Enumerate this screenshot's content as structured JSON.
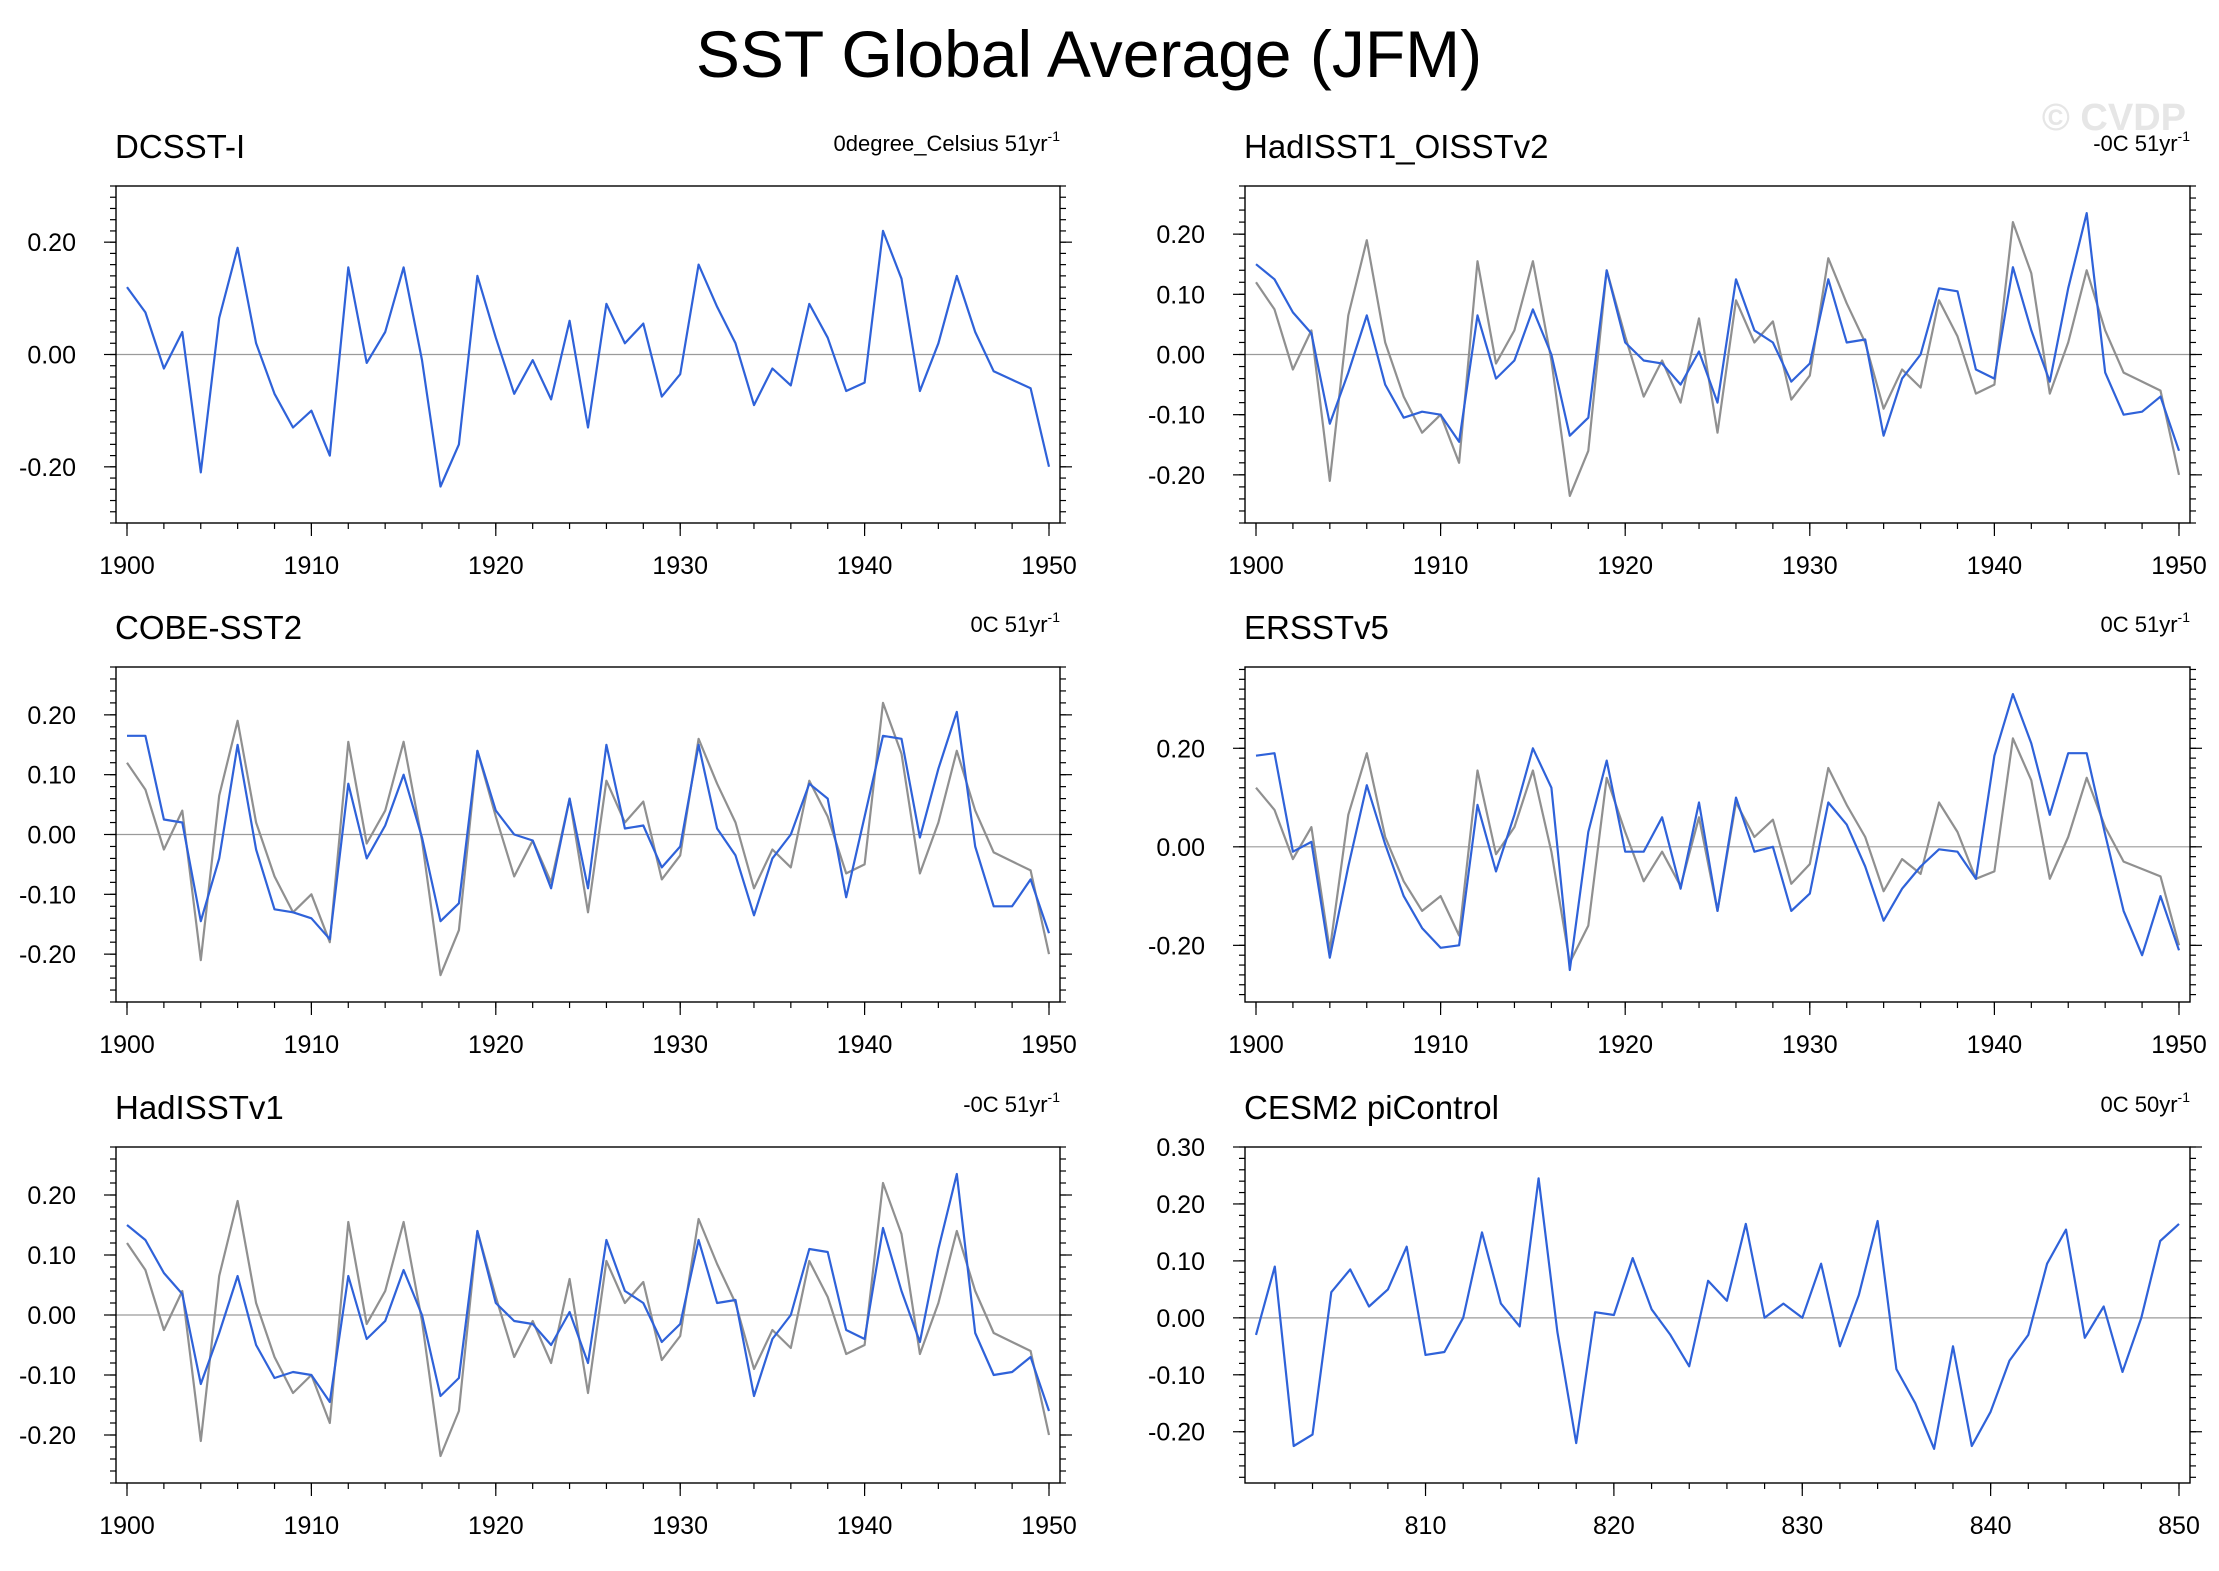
{
  "title": "SST Global Average (JFM)",
  "watermark": "© CVDP",
  "colors": {
    "observed": "#2f62d9",
    "reference": "#909090",
    "zero_line": "#9a9a9a"
  },
  "chart_data": [
    {
      "type": "line",
      "title": "DCSST-I",
      "units": {
        "text": "0degree_Celsius 51yr",
        "sup": "-1"
      },
      "xlim": [
        1900,
        1950
      ],
      "ylim": [
        -0.3,
        0.3
      ],
      "x_ticks": [
        1900,
        1910,
        1920,
        1930,
        1940,
        1950
      ],
      "y_ticks": [
        -0.2,
        0.0,
        0.2
      ],
      "y_tick_labels": [
        "-0.20",
        "0.00",
        "0.20"
      ],
      "x_start": 1900,
      "series": [
        {
          "name": "DCSST-I",
          "role": "main",
          "values": [
            0.12,
            0.075,
            -0.025,
            0.04,
            -0.21,
            0.065,
            0.19,
            0.02,
            -0.07,
            -0.13,
            -0.1,
            -0.18,
            0.155,
            -0.015,
            0.04,
            0.155,
            -0.01,
            -0.235,
            -0.16,
            0.14,
            0.03,
            -0.07,
            -0.01,
            -0.08,
            0.06,
            -0.13,
            0.09,
            0.02,
            0.055,
            -0.075,
            -0.035,
            0.16,
            0.085,
            0.02,
            -0.09,
            -0.025,
            -0.055,
            0.09,
            0.03,
            -0.065,
            -0.05,
            0.22,
            0.135,
            -0.065,
            0.02,
            0.14,
            0.04,
            -0.03,
            -0.045,
            -0.06,
            -0.2
          ]
        }
      ]
    },
    {
      "type": "line",
      "title": "HadISST1_OISSTv2",
      "units": {
        "text": "-0C 51yr",
        "sup": "-1"
      },
      "xlim": [
        1900,
        1950
      ],
      "ylim": [
        -0.28,
        0.28
      ],
      "x_ticks": [
        1900,
        1910,
        1920,
        1930,
        1940,
        1950
      ],
      "y_ticks": [
        -0.2,
        -0.1,
        0.0,
        0.1,
        0.2
      ],
      "y_tick_labels": [
        "-0.20",
        "-0.10",
        "0.00",
        "0.10",
        "0.20"
      ],
      "x_start": 1900,
      "series": [
        {
          "name": "DCSST-I",
          "role": "reference",
          "values": [
            0.12,
            0.075,
            -0.025,
            0.04,
            -0.21,
            0.065,
            0.19,
            0.02,
            -0.07,
            -0.13,
            -0.1,
            -0.18,
            0.155,
            -0.015,
            0.04,
            0.155,
            -0.01,
            -0.235,
            -0.16,
            0.14,
            0.03,
            -0.07,
            -0.01,
            -0.08,
            0.06,
            -0.13,
            0.09,
            0.02,
            0.055,
            -0.075,
            -0.035,
            0.16,
            0.085,
            0.02,
            -0.09,
            -0.025,
            -0.055,
            0.09,
            0.03,
            -0.065,
            -0.05,
            0.22,
            0.135,
            -0.065,
            0.02,
            0.14,
            0.04,
            -0.03,
            -0.045,
            -0.06,
            -0.2
          ]
        },
        {
          "name": "HadISST1_OISSTv2",
          "role": "main",
          "values": [
            0.15,
            0.125,
            0.07,
            0.035,
            -0.115,
            -0.03,
            0.065,
            -0.05,
            -0.105,
            -0.095,
            -0.1,
            -0.145,
            0.065,
            -0.04,
            -0.01,
            0.075,
            0.0,
            -0.135,
            -0.105,
            0.14,
            0.02,
            -0.01,
            -0.015,
            -0.05,
            0.005,
            -0.08,
            0.125,
            0.04,
            0.02,
            -0.045,
            -0.015,
            0.125,
            0.02,
            0.025,
            -0.135,
            -0.04,
            0.0,
            0.11,
            0.105,
            -0.025,
            -0.04,
            0.145,
            0.04,
            -0.045,
            0.11,
            0.235,
            -0.03,
            -0.1,
            -0.095,
            -0.07,
            -0.16
          ]
        }
      ]
    },
    {
      "type": "line",
      "title": "COBE-SST2",
      "units": {
        "text": "0C 51yr",
        "sup": "-1"
      },
      "xlim": [
        1900,
        1950
      ],
      "ylim": [
        -0.28,
        0.28
      ],
      "x_ticks": [
        1900,
        1910,
        1920,
        1930,
        1940,
        1950
      ],
      "y_ticks": [
        -0.2,
        -0.1,
        0.0,
        0.1,
        0.2
      ],
      "y_tick_labels": [
        "-0.20",
        "-0.10",
        "0.00",
        "0.10",
        "0.20"
      ],
      "x_start": 1900,
      "series": [
        {
          "name": "DCSST-I",
          "role": "reference",
          "values": [
            0.12,
            0.075,
            -0.025,
            0.04,
            -0.21,
            0.065,
            0.19,
            0.02,
            -0.07,
            -0.13,
            -0.1,
            -0.18,
            0.155,
            -0.015,
            0.04,
            0.155,
            -0.01,
            -0.235,
            -0.16,
            0.14,
            0.03,
            -0.07,
            -0.01,
            -0.08,
            0.06,
            -0.13,
            0.09,
            0.02,
            0.055,
            -0.075,
            -0.035,
            0.16,
            0.085,
            0.02,
            -0.09,
            -0.025,
            -0.055,
            0.09,
            0.03,
            -0.065,
            -0.05,
            0.22,
            0.135,
            -0.065,
            0.02,
            0.14,
            0.04,
            -0.03,
            -0.045,
            -0.06,
            -0.2
          ]
        },
        {
          "name": "COBE-SST2",
          "role": "main",
          "values": [
            0.165,
            0.165,
            0.025,
            0.02,
            -0.145,
            -0.04,
            0.15,
            -0.025,
            -0.125,
            -0.13,
            -0.14,
            -0.175,
            0.085,
            -0.04,
            0.015,
            0.1,
            -0.005,
            -0.145,
            -0.115,
            0.14,
            0.04,
            0.0,
            -0.01,
            -0.09,
            0.06,
            -0.09,
            0.15,
            0.01,
            0.015,
            -0.055,
            -0.02,
            0.15,
            0.01,
            -0.035,
            -0.135,
            -0.04,
            0.0,
            0.085,
            0.06,
            -0.105,
            0.03,
            0.165,
            0.16,
            -0.005,
            0.11,
            0.205,
            -0.02,
            -0.12,
            -0.12,
            -0.075,
            -0.165
          ]
        }
      ]
    },
    {
      "type": "line",
      "title": "ERSSTv5",
      "units": {
        "text": "0C 51yr",
        "sup": "-1"
      },
      "xlim": [
        1900,
        1950
      ],
      "ylim": [
        -0.315,
        0.365
      ],
      "x_ticks": [
        1900,
        1910,
        1920,
        1930,
        1940,
        1950
      ],
      "y_ticks": [
        -0.2,
        0.0,
        0.2
      ],
      "y_tick_labels": [
        "-0.20",
        "0.00",
        "0.20"
      ],
      "x_start": 1900,
      "series": [
        {
          "name": "DCSST-I",
          "role": "reference",
          "values": [
            0.12,
            0.075,
            -0.025,
            0.04,
            -0.21,
            0.065,
            0.19,
            0.02,
            -0.07,
            -0.13,
            -0.1,
            -0.18,
            0.155,
            -0.015,
            0.04,
            0.155,
            -0.01,
            -0.235,
            -0.16,
            0.14,
            0.03,
            -0.07,
            -0.01,
            -0.08,
            0.06,
            -0.13,
            0.09,
            0.02,
            0.055,
            -0.075,
            -0.035,
            0.16,
            0.085,
            0.02,
            -0.09,
            -0.025,
            -0.055,
            0.09,
            0.03,
            -0.065,
            -0.05,
            0.22,
            0.135,
            -0.065,
            0.02,
            0.14,
            0.04,
            -0.03,
            -0.045,
            -0.06,
            -0.2
          ]
        },
        {
          "name": "ERSSTv5",
          "role": "main",
          "values": [
            0.185,
            0.19,
            -0.01,
            0.01,
            -0.225,
            -0.04,
            0.125,
            0.005,
            -0.1,
            -0.165,
            -0.205,
            -0.2,
            0.085,
            -0.05,
            0.065,
            0.2,
            0.12,
            -0.25,
            0.03,
            0.175,
            -0.01,
            -0.01,
            0.06,
            -0.085,
            0.09,
            -0.13,
            0.1,
            -0.01,
            0.0,
            -0.13,
            -0.095,
            0.09,
            0.045,
            -0.04,
            -0.15,
            -0.085,
            -0.04,
            -0.005,
            -0.01,
            -0.065,
            0.185,
            0.31,
            0.21,
            0.065,
            0.19,
            0.19,
            0.025,
            -0.13,
            -0.22,
            -0.1,
            -0.21
          ]
        }
      ]
    },
    {
      "type": "line",
      "title": "HadISSTv1",
      "units": {
        "text": "-0C 51yr",
        "sup": "-1"
      },
      "xlim": [
        1900,
        1950
      ],
      "ylim": [
        -0.28,
        0.28
      ],
      "x_ticks": [
        1900,
        1910,
        1920,
        1930,
        1940,
        1950
      ],
      "y_ticks": [
        -0.2,
        -0.1,
        0.0,
        0.1,
        0.2
      ],
      "y_tick_labels": [
        "-0.20",
        "-0.10",
        "0.00",
        "0.10",
        "0.20"
      ],
      "x_start": 1900,
      "series": [
        {
          "name": "DCSST-I",
          "role": "reference",
          "values": [
            0.12,
            0.075,
            -0.025,
            0.04,
            -0.21,
            0.065,
            0.19,
            0.02,
            -0.07,
            -0.13,
            -0.1,
            -0.18,
            0.155,
            -0.015,
            0.04,
            0.155,
            -0.01,
            -0.235,
            -0.16,
            0.14,
            0.03,
            -0.07,
            -0.01,
            -0.08,
            0.06,
            -0.13,
            0.09,
            0.02,
            0.055,
            -0.075,
            -0.035,
            0.16,
            0.085,
            0.02,
            -0.09,
            -0.025,
            -0.055,
            0.09,
            0.03,
            -0.065,
            -0.05,
            0.22,
            0.135,
            -0.065,
            0.02,
            0.14,
            0.04,
            -0.03,
            -0.045,
            -0.06,
            -0.2
          ]
        },
        {
          "name": "HadISSTv1",
          "role": "main",
          "values": [
            0.15,
            0.125,
            0.07,
            0.035,
            -0.115,
            -0.03,
            0.065,
            -0.05,
            -0.105,
            -0.095,
            -0.1,
            -0.145,
            0.065,
            -0.04,
            -0.01,
            0.075,
            0.0,
            -0.135,
            -0.105,
            0.14,
            0.02,
            -0.01,
            -0.015,
            -0.05,
            0.005,
            -0.08,
            0.125,
            0.04,
            0.02,
            -0.045,
            -0.015,
            0.125,
            0.02,
            0.025,
            -0.135,
            -0.04,
            0.0,
            0.11,
            0.105,
            -0.025,
            -0.04,
            0.145,
            0.04,
            -0.045,
            0.11,
            0.235,
            -0.03,
            -0.1,
            -0.095,
            -0.07,
            -0.16
          ]
        }
      ]
    },
    {
      "type": "line",
      "title": "CESM2 piControl",
      "units": {
        "text": "0C 50yr",
        "sup": "-1"
      },
      "xlim": [
        801,
        850
      ],
      "ylim": [
        -0.29,
        0.3
      ],
      "x_ticks": [
        810,
        820,
        830,
        840,
        850
      ],
      "y_ticks": [
        -0.2,
        -0.1,
        0.0,
        0.1,
        0.2,
        0.3
      ],
      "y_tick_labels": [
        "-0.20",
        "-0.10",
        "0.00",
        "0.10",
        "0.20",
        "0.30"
      ],
      "x_start": 801,
      "series": [
        {
          "name": "CESM2 piControl",
          "role": "main",
          "values": [
            -0.03,
            0.09,
            -0.225,
            -0.205,
            0.045,
            0.085,
            0.02,
            0.05,
            0.125,
            -0.065,
            -0.06,
            0.0,
            0.15,
            0.025,
            -0.015,
            0.245,
            -0.025,
            -0.22,
            0.01,
            0.005,
            0.105,
            0.015,
            -0.03,
            -0.085,
            0.065,
            0.03,
            0.165,
            0.0,
            0.025,
            0.0,
            0.095,
            -0.05,
            0.04,
            0.17,
            -0.09,
            -0.15,
            -0.23,
            -0.05,
            -0.225,
            -0.165,
            -0.075,
            -0.03,
            0.095,
            0.155,
            -0.035,
            0.02,
            -0.095,
            0.0,
            0.135,
            0.165
          ]
        }
      ]
    }
  ]
}
